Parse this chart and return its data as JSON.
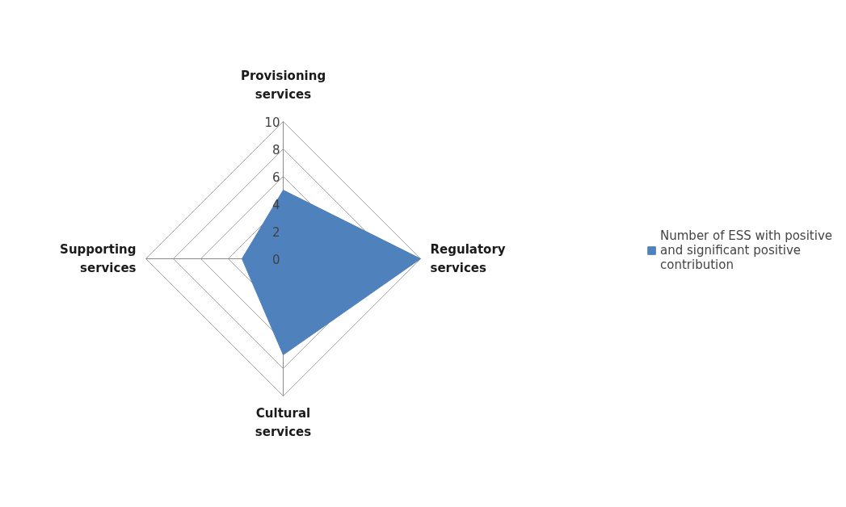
{
  "chart_data": {
    "type": "radar",
    "categories": [
      "Provisioning services",
      "Regulatory services",
      "Cultural services",
      "Supporting services"
    ],
    "series": [
      {
        "name": "Number of ESS with positive and significant positive contribution",
        "color": "#4f81bd",
        "values": [
          5,
          10,
          7,
          3
        ]
      }
    ],
    "ylim": [
      0,
      10
    ],
    "yticks": [
      0,
      2,
      4,
      6,
      8,
      10
    ],
    "grid": true,
    "legend": "right"
  }
}
